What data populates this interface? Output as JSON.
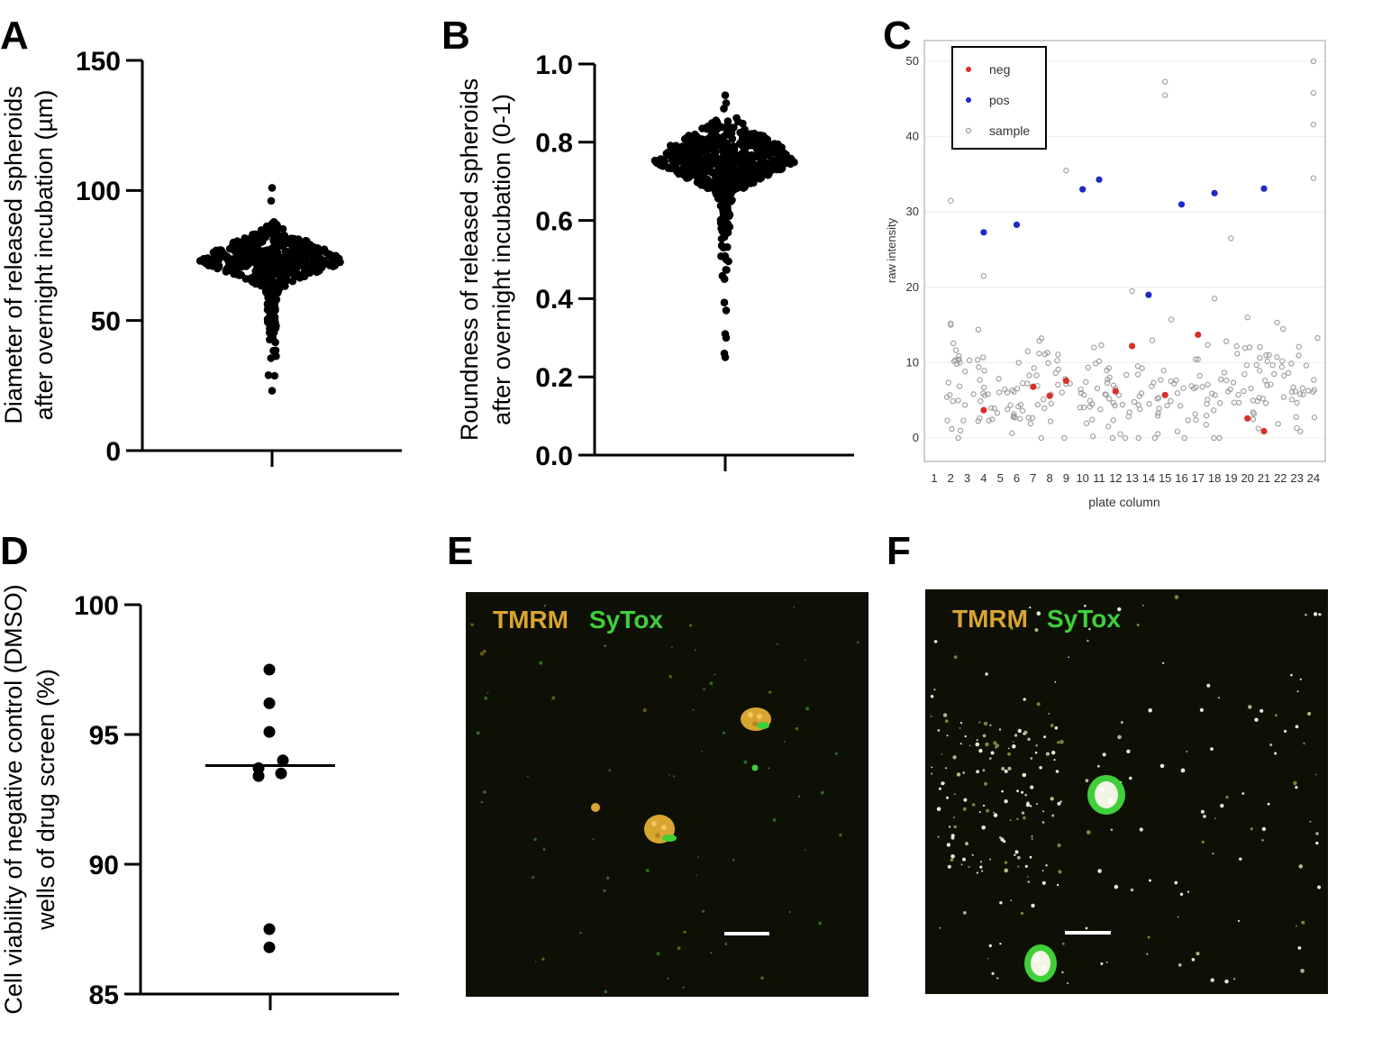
{
  "panels": {
    "A": {
      "label": "A"
    },
    "B": {
      "label": "B"
    },
    "C": {
      "label": "C"
    },
    "D": {
      "label": "D"
    },
    "E": {
      "label": "E",
      "stain_1": "TMRM",
      "stain_2": "SyTox"
    },
    "F": {
      "label": "F",
      "stain_1": "TMRM",
      "stain_2": "SyTox"
    }
  },
  "colors": {
    "tmrm": "#d9a531",
    "sytox": "#3fcf3a",
    "neg": "#d9302a",
    "pos": "#1f28c8",
    "sample": "#9a9a9a",
    "micro_bg": "#0e1006"
  },
  "chart_data": [
    {
      "id": "A",
      "type": "scatter",
      "style": "beeswarm",
      "ylabel": [
        "Diameter of released spheroids",
        "after overnight incubation (µm)"
      ],
      "ylim": [
        0,
        150
      ],
      "yticks": [
        "0",
        "50",
        "100",
        "150"
      ],
      "summary": {
        "median": 74,
        "min": 23,
        "max": 101
      }
    },
    {
      "id": "B",
      "type": "scatter",
      "style": "beeswarm",
      "ylabel": [
        "Roundness of released spheroids",
        "after overnight incubation (0-1)"
      ],
      "ylim": [
        0,
        1
      ],
      "yticks": [
        "0.0",
        "0.2",
        "0.4",
        "0.6",
        "0.8",
        "1.0"
      ],
      "summary": {
        "median": 0.76,
        "min": 0.25,
        "max": 0.92
      }
    },
    {
      "id": "C",
      "type": "scatter",
      "xlabel": "plate column",
      "ylabel": "raw intensity",
      "ylim": [
        -3,
        52
      ],
      "yticks": [
        "0",
        "10",
        "20",
        "30",
        "40",
        "50"
      ],
      "xticks": [
        "1",
        "2",
        "3",
        "4",
        "5",
        "6",
        "7",
        "8",
        "9",
        "10",
        "11",
        "12",
        "13",
        "14",
        "15",
        "16",
        "17",
        "18",
        "19",
        "20",
        "21",
        "22",
        "23",
        "24"
      ],
      "legend": {
        "position": "top-left",
        "items": [
          "neg",
          "pos",
          "sample"
        ]
      },
      "series": [
        {
          "name": "neg",
          "x": [
            4,
            7,
            8,
            9,
            12,
            13,
            15,
            17,
            20,
            21
          ],
          "y": [
            3.7,
            6.8,
            5.6,
            7.6,
            6.2,
            12.2,
            5.7,
            13.7,
            2.6,
            0.9
          ]
        },
        {
          "name": "pos",
          "x": [
            4,
            6,
            10,
            11,
            14,
            16,
            18,
            21
          ],
          "y": [
            27.3,
            28.3,
            33.0,
            34.3,
            19.0,
            31.0,
            32.5,
            33.1
          ]
        },
        {
          "name": "sample",
          "x": [
            2,
            15,
            15,
            24,
            24,
            24,
            24,
            9,
            2,
            2,
            19,
            4,
            18,
            20,
            13
          ],
          "y": [
            31.5,
            47.3,
            45.5,
            50.0,
            45.8,
            41.6,
            34.5,
            35.5,
            15.0,
            15.2,
            26.5,
            21.5,
            18.5,
            16.0,
            19.5
          ],
          "note_cluster": {
            "x_range": [
              1.7,
              24.3
            ],
            "y_range": [
              0,
              17.5
            ],
            "count": 260
          }
        }
      ]
    },
    {
      "id": "D",
      "type": "scatter",
      "ylabel": [
        "Cell viability of negative control (DMSO)",
        "wells of drug screen (%)"
      ],
      "ylim": [
        85,
        100
      ],
      "yticks": [
        "85",
        "90",
        "95",
        "100"
      ],
      "values": [
        97.5,
        96.2,
        95.1,
        94.0,
        93.7,
        93.5,
        93.4,
        87.5,
        86.8
      ],
      "median": 93.8
    }
  ]
}
